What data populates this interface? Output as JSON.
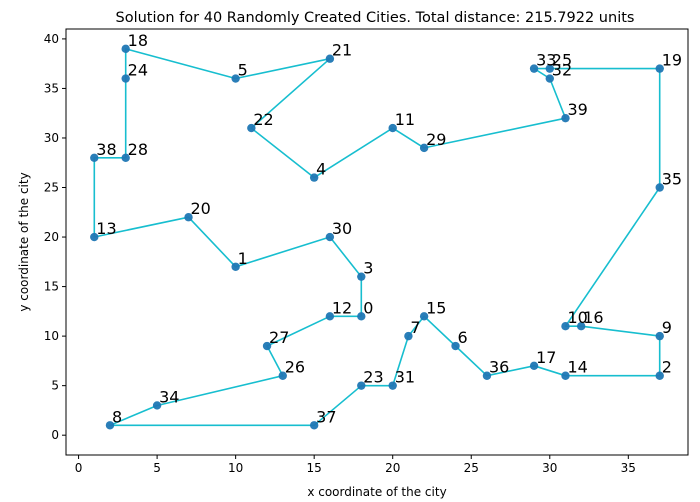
{
  "chart_data": {
    "type": "scatter",
    "title": "Solution for 40 Randomly Created Cities. Total distance: 215.7922 units",
    "xlabel": "x coordinate of the city",
    "ylabel": "y coordinate of the city",
    "xlim": [
      -0.8,
      38.8
    ],
    "ylim": [
      -2.0,
      41.0
    ],
    "xticks": [
      0,
      5,
      10,
      15,
      20,
      25,
      30,
      35
    ],
    "yticks": [
      0,
      5,
      10,
      15,
      20,
      25,
      30,
      35,
      40
    ],
    "grid": false,
    "colors": {
      "route": "#17becf",
      "city": "#1f77b4"
    },
    "cities": [
      {
        "label": "0",
        "x": 18,
        "y": 12
      },
      {
        "label": "1",
        "x": 10,
        "y": 17
      },
      {
        "label": "2",
        "x": 37,
        "y": 6
      },
      {
        "label": "3",
        "x": 18,
        "y": 16
      },
      {
        "label": "4",
        "x": 15,
        "y": 26
      },
      {
        "label": "5",
        "x": 10,
        "y": 36
      },
      {
        "label": "6",
        "x": 24,
        "y": 9
      },
      {
        "label": "7",
        "x": 21,
        "y": 10
      },
      {
        "label": "8",
        "x": 2,
        "y": 1
      },
      {
        "label": "9",
        "x": 37,
        "y": 10
      },
      {
        "label": "10",
        "x": 31,
        "y": 11
      },
      {
        "label": "11",
        "x": 20,
        "y": 31
      },
      {
        "label": "12",
        "x": 16,
        "y": 12
      },
      {
        "label": "13",
        "x": 1,
        "y": 20
      },
      {
        "label": "14",
        "x": 31,
        "y": 6
      },
      {
        "label": "15",
        "x": 22,
        "y": 12
      },
      {
        "label": "16",
        "x": 32,
        "y": 11
      },
      {
        "label": "17",
        "x": 29,
        "y": 7
      },
      {
        "label": "18",
        "x": 3,
        "y": 39
      },
      {
        "label": "19",
        "x": 37,
        "y": 37
      },
      {
        "label": "20",
        "x": 7,
        "y": 22
      },
      {
        "label": "21",
        "x": 16,
        "y": 38
      },
      {
        "label": "22",
        "x": 11,
        "y": 31
      },
      {
        "label": "23",
        "x": 18,
        "y": 5
      },
      {
        "label": "24",
        "x": 3,
        "y": 36
      },
      {
        "label": "25",
        "x": 30,
        "y": 37
      },
      {
        "label": "26",
        "x": 13,
        "y": 6
      },
      {
        "label": "27",
        "x": 12,
        "y": 9
      },
      {
        "label": "28",
        "x": 3,
        "y": 28
      },
      {
        "label": "29",
        "x": 22,
        "y": 29
      },
      {
        "label": "30",
        "x": 16,
        "y": 20
      },
      {
        "label": "31",
        "x": 20,
        "y": 5
      },
      {
        "label": "32",
        "x": 30,
        "y": 36
      },
      {
        "label": "33",
        "x": 29,
        "y": 37
      },
      {
        "label": "34",
        "x": 5,
        "y": 3
      },
      {
        "label": "35",
        "x": 37,
        "y": 25
      },
      {
        "label": "36",
        "x": 26,
        "y": 6
      },
      {
        "label": "37",
        "x": 15,
        "y": 1
      },
      {
        "label": "38",
        "x": 1,
        "y": 28
      },
      {
        "label": "39",
        "x": 31,
        "y": 32
      }
    ],
    "route": [
      0,
      3,
      30,
      1,
      20,
      13,
      38,
      28,
      24,
      18,
      5,
      21,
      22,
      4,
      11,
      29,
      39,
      32,
      33,
      25,
      19,
      35,
      10,
      16,
      9,
      2,
      14,
      17,
      36,
      6,
      15,
      7,
      31,
      23,
      37,
      8,
      34,
      26,
      27,
      12,
      0
    ]
  }
}
